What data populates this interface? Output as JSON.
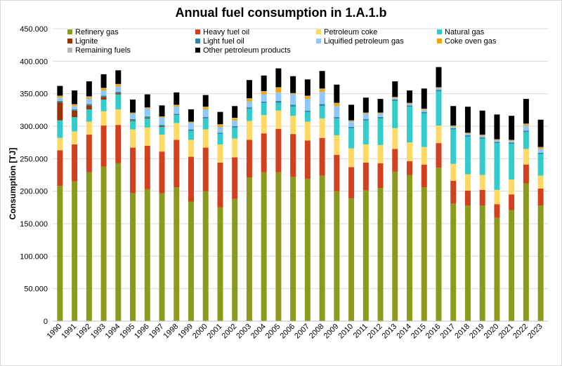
{
  "chart_data": {
    "type": "bar",
    "stacked": true,
    "title": "Annual fuel consumption in 1.A.1.b",
    "xlabel": "",
    "ylabel": "Consumption [TJ]",
    "ylim": [
      0,
      450000
    ],
    "yticks": [
      "0",
      "50.000",
      "100.000",
      "150.000",
      "200.000",
      "250.000",
      "300.000",
      "350.000",
      "400.000",
      "450.000"
    ],
    "ytick_values": [
      0,
      50000,
      100000,
      150000,
      200000,
      250000,
      300000,
      350000,
      400000,
      450000
    ],
    "grid": true,
    "legend_position": "top",
    "categories": [
      "1990",
      "1991",
      "1992",
      "1993",
      "1994",
      "1995",
      "1996",
      "1997",
      "1998",
      "1999",
      "2000",
      "2001",
      "2002",
      "2003",
      "2004",
      "2005",
      "2006",
      "2007",
      "2008",
      "2009",
      "2010",
      "2011",
      "2012",
      "2013",
      "2014",
      "2015",
      "2016",
      "2017",
      "2018",
      "2019",
      "2020",
      "2021",
      "2022",
      "2023"
    ],
    "series": [
      {
        "name": "Refinery gas",
        "color": "#8c9a1e",
        "values": [
          208000,
          215000,
          229000,
          238000,
          243000,
          197000,
          203000,
          197000,
          206000,
          184000,
          200000,
          175000,
          188000,
          221000,
          229000,
          229000,
          222000,
          219000,
          224000,
          200000,
          189000,
          201000,
          205000,
          230000,
          225000,
          206000,
          236000,
          181000,
          178000,
          178000,
          159000,
          171000,
          212000,
          178000
        ]
      },
      {
        "name": "Heavy fuel oil",
        "color": "#d2401e",
        "values": [
          55000,
          57000,
          58000,
          63000,
          59000,
          70000,
          67000,
          64000,
          73000,
          69000,
          67000,
          69000,
          64000,
          58000,
          60000,
          67000,
          66000,
          59000,
          58000,
          56000,
          48000,
          43000,
          38000,
          35000,
          21000,
          35000,
          38000,
          35000,
          23000,
          24000,
          21000,
          24000,
          29000,
          26000
        ]
      },
      {
        "name": "Petroleum coke",
        "color": "#ffd966",
        "values": [
          19000,
          20000,
          20000,
          22000,
          24000,
          28000,
          28000,
          26000,
          26000,
          26000,
          28000,
          28000,
          29000,
          29000,
          28000,
          28000,
          28000,
          29000,
          30000,
          30000,
          29000,
          28000,
          28000,
          32000,
          29000,
          27000,
          27000,
          26000,
          25000,
          23000,
          22000,
          23000,
          24000,
          20000
        ]
      },
      {
        "name": "Natural gas",
        "color": "#33cccc",
        "values": [
          27000,
          22000,
          19000,
          18000,
          23000,
          13000,
          14000,
          12000,
          12000,
          14000,
          17000,
          16000,
          17000,
          19000,
          19000,
          12000,
          14000,
          15000,
          19000,
          26000,
          31000,
          37000,
          41000,
          42000,
          55000,
          52000,
          53000,
          53000,
          58000,
          56000,
          72000,
          55000,
          26000,
          33000
        ]
      },
      {
        "name": "Lignite",
        "color": "#993300",
        "values": [
          28000,
          10000,
          6000,
          4000,
          2000,
          1000,
          1000,
          1000,
          0,
          0,
          0,
          0,
          0,
          0,
          0,
          0,
          0,
          0,
          0,
          0,
          0,
          0,
          0,
          0,
          0,
          0,
          0,
          0,
          0,
          0,
          0,
          0,
          0,
          0
        ]
      },
      {
        "name": "Light fuel oil",
        "color": "#31859c",
        "values": [
          2000,
          2000,
          2000,
          2000,
          2000,
          2000,
          2000,
          2000,
          2000,
          2000,
          2000,
          2000,
          2000,
          2000,
          2000,
          3000,
          3000,
          2000,
          3000,
          2000,
          2000,
          2000,
          2000,
          2000,
          2000,
          2000,
          2000,
          2000,
          2000,
          2000,
          2000,
          2000,
          2000,
          2000
        ]
      },
      {
        "name": "Liquified petroleum gas",
        "color": "#8ec8ff",
        "values": [
          5000,
          5000,
          8000,
          8000,
          8000,
          8000,
          12000,
          11000,
          11000,
          10000,
          12000,
          9000,
          9000,
          9000,
          11000,
          13000,
          16000,
          18000,
          19000,
          17000,
          8000,
          8000,
          5000,
          2000,
          2000,
          3000,
          2000,
          2000,
          2000,
          2000,
          2000,
          2000,
          8000,
          6000
        ]
      },
      {
        "name": "Coke oven gas",
        "color": "#f5a300",
        "values": [
          2000,
          2000,
          2000,
          3000,
          3000,
          1000,
          1000,
          1000,
          2000,
          1000,
          3000,
          3000,
          3000,
          4000,
          4000,
          7000,
          1000,
          4000,
          4000,
          4000,
          1000,
          1000,
          1000,
          1000,
          1000,
          1000,
          1000,
          1000,
          1000,
          1000,
          1000,
          1000,
          2000,
          2000
        ]
      },
      {
        "name": "Remaining fuels",
        "color": "#b4b4b4",
        "values": [
          1000,
          1000,
          2000,
          1000,
          1000,
          1000,
          1000,
          1000,
          1000,
          1000,
          1000,
          1000,
          1000,
          1000,
          1000,
          1000,
          1000,
          1000,
          1000,
          1000,
          1000,
          1000,
          1000,
          1000,
          1000,
          1000,
          1000,
          1000,
          1000,
          1000,
          1000,
          1000,
          1000,
          1000
        ]
      },
      {
        "name": "Other petroleum products",
        "color": "#000000",
        "values": [
          15000,
          21000,
          23000,
          21000,
          21000,
          20000,
          20000,
          17000,
          19000,
          19000,
          18000,
          19000,
          18000,
          28000,
          24000,
          29000,
          26000,
          25000,
          27000,
          28000,
          24000,
          23000,
          21000,
          24000,
          19000,
          31000,
          31000,
          30000,
          40000,
          37000,
          38000,
          37000,
          38000,
          42000
        ]
      }
    ]
  }
}
